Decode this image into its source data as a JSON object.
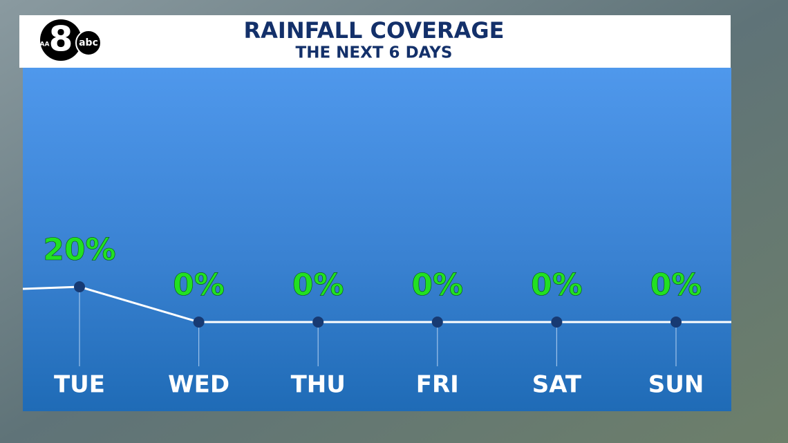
{
  "logo": {
    "station": "WFAA",
    "channel": "8",
    "network": "abc"
  },
  "chart_data": {
    "type": "line",
    "title": "RAINFALL COVERAGE",
    "subtitle": "THE NEXT 6 DAYS",
    "categories": [
      "TUE",
      "WED",
      "THU",
      "FRI",
      "SAT",
      "SUN"
    ],
    "values": [
      20,
      0,
      0,
      0,
      0,
      0
    ],
    "value_labels": [
      "20%",
      "0%",
      "0%",
      "0%",
      "0%",
      "0%"
    ],
    "color": "#ffffff",
    "label_color": "#22e022",
    "marker_color": "#173a73"
  }
}
